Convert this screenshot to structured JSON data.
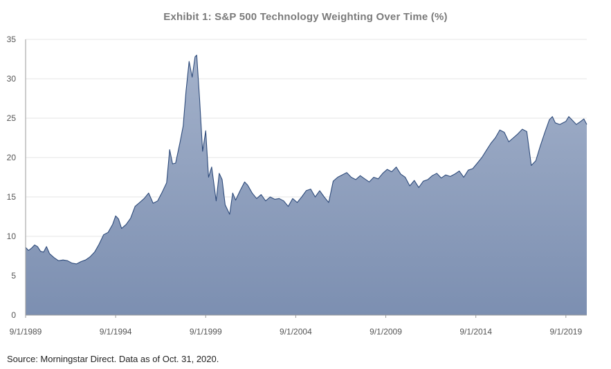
{
  "title": "Exhibit 1: S&P 500 Technology Weighting Over Time (%)",
  "source": "Source: Morningstar Direct. Data as of Oct. 31, 2020.",
  "colors": {
    "area_top": "#a3b1ca",
    "area_bottom": "#7c8fb1",
    "line": "#2d4a7a",
    "grid": "#e6e6e6"
  },
  "chart_data": {
    "type": "area",
    "title": "Exhibit 1: S&P 500 Technology Weighting Over Time (%)",
    "xlabel": "",
    "ylabel": "",
    "ylim": [
      0,
      35
    ],
    "xlim": [
      1989.67,
      2020.83
    ],
    "grid": true,
    "legend": "none",
    "y_ticks": [
      0,
      5,
      10,
      15,
      20,
      25,
      30,
      35
    ],
    "x_tick_labels": [
      {
        "label": "9/1/1989",
        "year": 1989.67
      },
      {
        "label": "9/1/1994",
        "year": 1994.67
      },
      {
        "label": "9/1/1999",
        "year": 1999.67
      },
      {
        "label": "9/1/2004",
        "year": 2004.67
      },
      {
        "label": "9/1/2009",
        "year": 2009.67
      },
      {
        "label": "9/1/2014",
        "year": 2014.67
      },
      {
        "label": "9/1/2019",
        "year": 2019.67
      }
    ],
    "series": [
      {
        "points": [
          [
            1989.67,
            8.6
          ],
          [
            1989.83,
            8.2
          ],
          [
            1990.0,
            8.5
          ],
          [
            1990.17,
            8.9
          ],
          [
            1990.33,
            8.7
          ],
          [
            1990.5,
            8.1
          ],
          [
            1990.67,
            8.0
          ],
          [
            1990.83,
            8.7
          ],
          [
            1991.0,
            7.8
          ],
          [
            1991.25,
            7.3
          ],
          [
            1991.5,
            6.9
          ],
          [
            1991.75,
            7.0
          ],
          [
            1992.0,
            6.9
          ],
          [
            1992.25,
            6.6
          ],
          [
            1992.5,
            6.5
          ],
          [
            1992.75,
            6.8
          ],
          [
            1993.0,
            7.0
          ],
          [
            1993.25,
            7.4
          ],
          [
            1993.5,
            8.0
          ],
          [
            1993.75,
            9.0
          ],
          [
            1994.0,
            10.2
          ],
          [
            1994.25,
            10.5
          ],
          [
            1994.5,
            11.5
          ],
          [
            1994.67,
            12.6
          ],
          [
            1994.83,
            12.2
          ],
          [
            1995.0,
            11.0
          ],
          [
            1995.25,
            11.5
          ],
          [
            1995.5,
            12.3
          ],
          [
            1995.75,
            13.8
          ],
          [
            1996.0,
            14.3
          ],
          [
            1996.25,
            14.8
          ],
          [
            1996.5,
            15.5
          ],
          [
            1996.75,
            14.2
          ],
          [
            1997.0,
            14.5
          ],
          [
            1997.25,
            15.6
          ],
          [
            1997.5,
            16.8
          ],
          [
            1997.67,
            21.0
          ],
          [
            1997.83,
            19.2
          ],
          [
            1998.0,
            19.3
          ],
          [
            1998.25,
            22.0
          ],
          [
            1998.42,
            24.0
          ],
          [
            1998.58,
            28.5
          ],
          [
            1998.75,
            32.2
          ],
          [
            1998.92,
            30.2
          ],
          [
            1999.08,
            32.8
          ],
          [
            1999.17,
            33.0
          ],
          [
            1999.33,
            27.5
          ],
          [
            1999.5,
            20.8
          ],
          [
            1999.67,
            23.4
          ],
          [
            1999.83,
            17.5
          ],
          [
            2000.0,
            18.8
          ],
          [
            2000.25,
            14.5
          ],
          [
            2000.42,
            18.0
          ],
          [
            2000.58,
            17.2
          ],
          [
            2000.75,
            14.0
          ],
          [
            2001.0,
            12.8
          ],
          [
            2001.17,
            15.5
          ],
          [
            2001.33,
            14.6
          ],
          [
            2001.58,
            15.8
          ],
          [
            2001.83,
            16.9
          ],
          [
            2002.0,
            16.5
          ],
          [
            2002.25,
            15.5
          ],
          [
            2002.5,
            14.8
          ],
          [
            2002.75,
            15.3
          ],
          [
            2003.0,
            14.5
          ],
          [
            2003.25,
            15.0
          ],
          [
            2003.5,
            14.7
          ],
          [
            2003.75,
            14.8
          ],
          [
            2004.0,
            14.5
          ],
          [
            2004.25,
            13.8
          ],
          [
            2004.5,
            14.8
          ],
          [
            2004.75,
            14.3
          ],
          [
            2005.0,
            15.0
          ],
          [
            2005.25,
            15.8
          ],
          [
            2005.5,
            16.0
          ],
          [
            2005.75,
            15.0
          ],
          [
            2006.0,
            15.8
          ],
          [
            2006.25,
            15.0
          ],
          [
            2006.5,
            14.3
          ],
          [
            2006.75,
            17.0
          ],
          [
            2007.0,
            17.5
          ],
          [
            2007.25,
            17.8
          ],
          [
            2007.5,
            18.1
          ],
          [
            2007.75,
            17.5
          ],
          [
            2008.0,
            17.2
          ],
          [
            2008.25,
            17.7
          ],
          [
            2008.5,
            17.3
          ],
          [
            2008.75,
            16.9
          ],
          [
            2009.0,
            17.5
          ],
          [
            2009.25,
            17.3
          ],
          [
            2009.5,
            18.0
          ],
          [
            2009.75,
            18.5
          ],
          [
            2010.0,
            18.2
          ],
          [
            2010.25,
            18.8
          ],
          [
            2010.5,
            17.9
          ],
          [
            2010.75,
            17.5
          ],
          [
            2011.0,
            16.4
          ],
          [
            2011.25,
            17.1
          ],
          [
            2011.5,
            16.2
          ],
          [
            2011.75,
            17.0
          ],
          [
            2012.0,
            17.2
          ],
          [
            2012.25,
            17.7
          ],
          [
            2012.5,
            18.0
          ],
          [
            2012.75,
            17.4
          ],
          [
            2013.0,
            17.8
          ],
          [
            2013.25,
            17.6
          ],
          [
            2013.5,
            17.9
          ],
          [
            2013.75,
            18.3
          ],
          [
            2014.0,
            17.5
          ],
          [
            2014.25,
            18.4
          ],
          [
            2014.5,
            18.6
          ],
          [
            2014.75,
            19.3
          ],
          [
            2015.0,
            20.0
          ],
          [
            2015.25,
            20.9
          ],
          [
            2015.5,
            21.8
          ],
          [
            2015.75,
            22.5
          ],
          [
            2016.0,
            23.5
          ],
          [
            2016.25,
            23.2
          ],
          [
            2016.5,
            22.0
          ],
          [
            2016.75,
            22.5
          ],
          [
            2017.0,
            23.0
          ],
          [
            2017.25,
            23.6
          ],
          [
            2017.5,
            23.3
          ],
          [
            2017.75,
            19.0
          ],
          [
            2018.0,
            19.6
          ],
          [
            2018.25,
            21.5
          ],
          [
            2018.5,
            23.2
          ],
          [
            2018.75,
            24.8
          ],
          [
            2018.92,
            25.2
          ],
          [
            2019.08,
            24.4
          ],
          [
            2019.33,
            24.2
          ],
          [
            2019.67,
            24.6
          ],
          [
            2019.83,
            25.2
          ],
          [
            2020.0,
            24.8
          ],
          [
            2020.25,
            24.2
          ],
          [
            2020.5,
            24.6
          ],
          [
            2020.67,
            24.9
          ],
          [
            2020.83,
            24.2
          ]
        ]
      }
    ]
  }
}
